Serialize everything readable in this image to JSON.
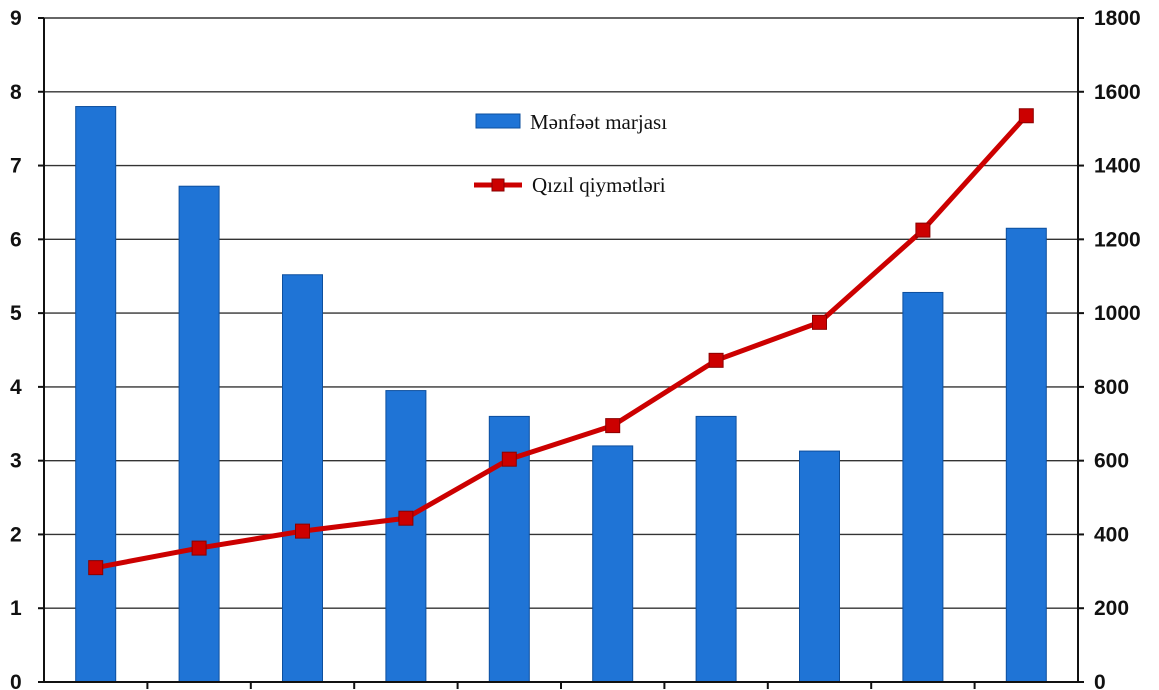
{
  "chart_data": {
    "type": "bar",
    "categories": [
      "",
      "",
      "",
      "",
      "",
      "",
      "",
      "",
      "",
      ""
    ],
    "series": [
      {
        "name": "Mənfəət marjası",
        "type": "bar",
        "axis": "left",
        "color": "#1f74d6",
        "values": [
          7.8,
          6.72,
          5.52,
          3.95,
          3.6,
          3.2,
          3.6,
          3.13,
          5.28,
          6.15
        ]
      },
      {
        "name": "Qızıl qiymətləri",
        "type": "line",
        "axis": "right",
        "color": "#cc0000",
        "values": [
          310,
          363,
          409,
          444,
          604,
          695,
          872,
          975,
          1225,
          1535
        ]
      }
    ],
    "y_left": {
      "ylim": [
        0,
        9
      ],
      "ticks": [
        "0",
        "1",
        "2",
        "3",
        "4",
        "5",
        "6",
        "7",
        "8",
        "9"
      ]
    },
    "y_right": {
      "ylim": [
        0,
        1800
      ],
      "ticks": [
        "0",
        "200",
        "400",
        "600",
        "800",
        "1000",
        "1200",
        "1400",
        "1600",
        "1800"
      ]
    },
    "grid": true,
    "legend": {
      "placement": "top-center-inside"
    },
    "title": "",
    "xlabel": "",
    "ylabel": ""
  }
}
